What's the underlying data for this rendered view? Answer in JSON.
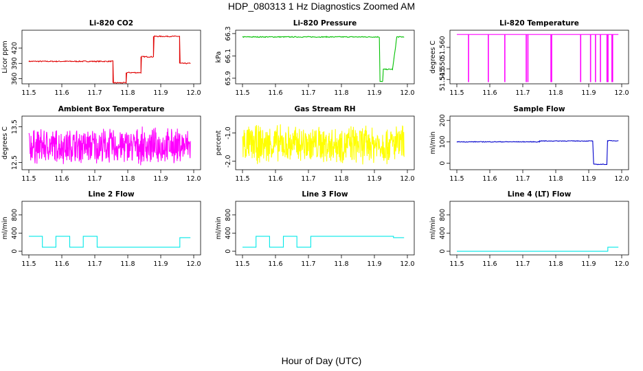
{
  "title": "HDP_080313  1 Hz Diagnostics Zoomed AM",
  "xlabel": "Hour of Day (UTC)",
  "chart_data": [
    {
      "type": "line",
      "title": "Li-820 CO2",
      "ylabel": "Licor ppm",
      "color": "#e00000",
      "xlim": [
        11.5,
        12.0
      ],
      "ylim": [
        350,
        455
      ],
      "xticks": [
        "11.5",
        "11.6",
        "11.7",
        "11.8",
        "11.9",
        "12.0"
      ],
      "yticks": [
        360,
        390,
        420
      ],
      "noise": 1.0,
      "x": [
        11.5,
        11.755,
        11.755,
        11.795,
        11.795,
        11.84,
        11.84,
        11.878,
        11.878,
        11.957,
        11.957,
        11.99
      ],
      "y": [
        394,
        394,
        352,
        352,
        372,
        372,
        403,
        403,
        443,
        443,
        390,
        390
      ]
    },
    {
      "type": "line",
      "title": "Li-820 Pressure",
      "ylabel": "kPa",
      "color": "#00c000",
      "xlim": [
        11.5,
        12.0
      ],
      "ylim": [
        65.85,
        66.33
      ],
      "xticks": [
        "11.5",
        "11.6",
        "11.7",
        "11.8",
        "11.9",
        "12.0"
      ],
      "yticks": [
        "65.9",
        "66.1",
        "66.3"
      ],
      "noise": 0.004,
      "x": [
        11.5,
        11.915,
        11.917,
        11.925,
        11.927,
        11.955,
        11.968,
        11.99
      ],
      "y": [
        66.27,
        66.27,
        65.87,
        65.87,
        65.98,
        65.98,
        66.27,
        66.27
      ]
    },
    {
      "type": "line",
      "title": "Li-820 Temperature",
      "ylabel": "degrees C",
      "color": "#ff00ff",
      "xlim": [
        11.5,
        12.0
      ],
      "ylim": [
        51.543,
        51.568
      ],
      "xticks": [
        "11.5",
        "11.6",
        "11.7",
        "11.8",
        "11.9",
        "12.0"
      ],
      "yticks": [
        "51.545",
        "51.550",
        "51.560"
      ],
      "baseline": 51.566,
      "dip": 51.544,
      "dips_at": [
        11.535,
        11.595,
        11.645,
        11.71,
        11.715,
        11.785,
        11.787,
        11.875,
        11.905,
        11.92,
        11.935,
        11.955,
        11.958,
        11.97,
        11.972
      ]
    },
    {
      "type": "line",
      "title": "Ambient Box Temperature",
      "ylabel": "degrees C",
      "color": "#ff00ff",
      "xlim": [
        11.5,
        12.0
      ],
      "ylim": [
        12.3,
        13.8
      ],
      "xticks": [
        "11.5",
        "11.6",
        "11.7",
        "11.8",
        "11.9",
        "12.0"
      ],
      "yticks": [
        "12.5",
        "13.5"
      ],
      "center": 12.96,
      "spread": 0.55
    },
    {
      "type": "line",
      "title": "Gas Stream RH",
      "ylabel": "percent",
      "color": "#ffff00",
      "xlim": [
        11.5,
        12.0
      ],
      "ylim": [
        -2.3,
        -0.4
      ],
      "xticks": [
        "11.5",
        "11.6",
        "11.7",
        "11.8",
        "11.9",
        "12.0"
      ],
      "yticks": [
        "-2.0",
        "-1.0"
      ],
      "center": -1.4,
      "spread": 0.75
    },
    {
      "type": "line",
      "title": "Sample Flow",
      "ylabel": "ml/min",
      "color": "#0000cc",
      "xlim": [
        11.5,
        12.0
      ],
      "ylim": [
        -30,
        220
      ],
      "xticks": [
        "11.5",
        "11.6",
        "11.7",
        "11.8",
        "11.9",
        "12.0"
      ],
      "yticks": [
        0,
        100,
        200
      ],
      "noise": 1.5,
      "x": [
        11.5,
        11.75,
        11.75,
        11.912,
        11.915,
        11.955,
        11.957,
        11.99
      ],
      "y": [
        100,
        100,
        104,
        104,
        -5,
        -5,
        105,
        105
      ]
    },
    {
      "type": "line",
      "title": "Line 2 Flow",
      "ylabel": "ml/min",
      "color": "#00e8e8",
      "xlim": [
        11.5,
        12.0
      ],
      "ylim": [
        -80,
        1100
      ],
      "xticks": [
        "11.5",
        "11.6",
        "11.7",
        "11.8",
        "11.9",
        "12.0"
      ],
      "yticks": [
        0,
        400,
        800
      ],
      "noise": 0,
      "x": [
        11.5,
        11.541,
        11.541,
        11.582,
        11.582,
        11.624,
        11.624,
        11.665,
        11.665,
        11.707,
        11.707,
        11.958,
        11.958,
        11.99
      ],
      "y": [
        330,
        330,
        90,
        90,
        330,
        330,
        90,
        90,
        330,
        330,
        90,
        90,
        300,
        300
      ]
    },
    {
      "type": "line",
      "title": "Line 3 Flow",
      "ylabel": "ml/min",
      "color": "#00e8e8",
      "xlim": [
        11.5,
        12.0
      ],
      "ylim": [
        -80,
        1100
      ],
      "xticks": [
        "11.5",
        "11.6",
        "11.7",
        "11.8",
        "11.9",
        "12.0"
      ],
      "yticks": [
        0,
        400,
        800
      ],
      "noise": 0,
      "x": [
        11.5,
        11.541,
        11.541,
        11.582,
        11.582,
        11.624,
        11.624,
        11.665,
        11.665,
        11.707,
        11.707,
        11.958,
        11.958,
        11.99
      ],
      "y": [
        90,
        90,
        330,
        330,
        90,
        90,
        330,
        330,
        90,
        90,
        330,
        330,
        300,
        300
      ]
    },
    {
      "type": "line",
      "title": "Line 4 (LT) Flow",
      "ylabel": "ml/min",
      "color": "#00e8e8",
      "xlim": [
        11.5,
        12.0
      ],
      "ylim": [
        -80,
        1100
      ],
      "xticks": [
        "11.5",
        "11.6",
        "11.7",
        "11.8",
        "11.9",
        "12.0"
      ],
      "yticks": [
        0,
        400,
        800
      ],
      "noise": 0,
      "x": [
        11.5,
        11.958,
        11.958,
        11.99
      ],
      "y": [
        0,
        0,
        90,
        90
      ]
    }
  ]
}
